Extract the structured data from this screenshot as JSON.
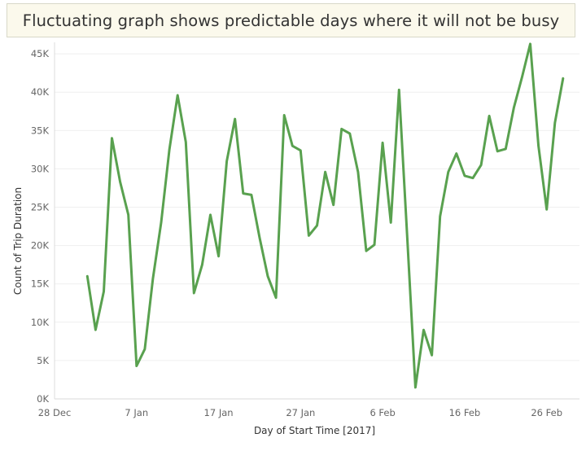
{
  "chart_data": {
    "type": "line",
    "title": "Fluctuating graph shows predictable days where it will not be busy",
    "xlabel": "Day of Start Time [2017]",
    "ylabel": "Count of Trip Duration",
    "x_ticks": [
      {
        "label": "28 Dec",
        "date": "2016-12-28"
      },
      {
        "label": "7 Jan",
        "date": "2017-01-07"
      },
      {
        "label": "17 Jan",
        "date": "2017-01-17"
      },
      {
        "label": "27 Jan",
        "date": "2017-01-27"
      },
      {
        "label": "6 Feb",
        "date": "2017-02-06"
      },
      {
        "label": "16 Feb",
        "date": "2017-02-16"
      },
      {
        "label": "26 Feb",
        "date": "2017-02-26"
      }
    ],
    "y_ticks": [
      {
        "label": "0K",
        "value": 0
      },
      {
        "label": "5K",
        "value": 5000
      },
      {
        "label": "10K",
        "value": 10000
      },
      {
        "label": "15K",
        "value": 15000
      },
      {
        "label": "20K",
        "value": 20000
      },
      {
        "label": "25K",
        "value": 25000
      },
      {
        "label": "30K",
        "value": 30000
      },
      {
        "label": "35K",
        "value": 35000
      },
      {
        "label": "40K",
        "value": 40000
      },
      {
        "label": "45K",
        "value": 45000
      }
    ],
    "xlim": [
      "2016-12-28",
      "2017-03-02"
    ],
    "ylim": [
      0,
      46500
    ],
    "grid": true,
    "line_color": "#59a14f",
    "series": [
      {
        "x": [
          "2017-01-01",
          "2017-01-02",
          "2017-01-03",
          "2017-01-04",
          "2017-01-05",
          "2017-01-06",
          "2017-01-07",
          "2017-01-08",
          "2017-01-09",
          "2017-01-10",
          "2017-01-11",
          "2017-01-12",
          "2017-01-13",
          "2017-01-14",
          "2017-01-15",
          "2017-01-16",
          "2017-01-17",
          "2017-01-18",
          "2017-01-19",
          "2017-01-20",
          "2017-01-21",
          "2017-01-22",
          "2017-01-23",
          "2017-01-24",
          "2017-01-25",
          "2017-01-26",
          "2017-01-27",
          "2017-01-28",
          "2017-01-29",
          "2017-01-30",
          "2017-01-31",
          "2017-02-01",
          "2017-02-02",
          "2017-02-03",
          "2017-02-04",
          "2017-02-05",
          "2017-02-06",
          "2017-02-07",
          "2017-02-08",
          "2017-02-09",
          "2017-02-10",
          "2017-02-11",
          "2017-02-12",
          "2017-02-13",
          "2017-02-14",
          "2017-02-15",
          "2017-02-16",
          "2017-02-17",
          "2017-02-18",
          "2017-02-19",
          "2017-02-20",
          "2017-02-21",
          "2017-02-22",
          "2017-02-23",
          "2017-02-24",
          "2017-02-25",
          "2017-02-26",
          "2017-02-27",
          "2017-02-28",
          "2017-03-01"
        ],
        "values": [
          16000,
          9000,
          14000,
          34000,
          28300,
          24000,
          4300,
          6500,
          15700,
          23000,
          32500,
          39600,
          33500,
          13800,
          17500,
          24000,
          18600,
          31000,
          36500,
          26800,
          26600,
          21000,
          16000,
          13200,
          37000,
          33000,
          32400,
          21300,
          22600,
          29600,
          25300,
          35200,
          34600,
          29600,
          19300,
          20100,
          33400,
          23000,
          40300,
          21000,
          1500,
          9000,
          5700,
          23800,
          29600,
          32000,
          29100,
          28800,
          30500,
          36900,
          32300,
          32600,
          38000,
          42000,
          46300,
          33000,
          24700,
          36000,
          41800,
          null
        ]
      }
    ]
  }
}
